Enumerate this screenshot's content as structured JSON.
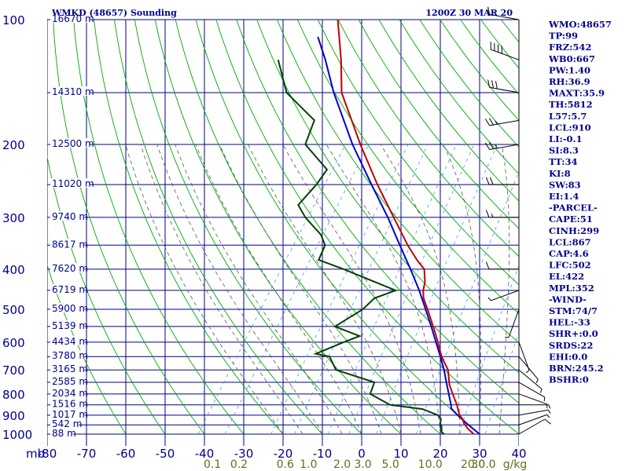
{
  "header": {
    "station": "WMKD (48657) Sounding",
    "time": "1200Z 30 MAR 20"
  },
  "colors": {
    "grid": "#00008b",
    "temperature": "#c00000",
    "dewpoint": "#004000",
    "parcel": "#0000cc",
    "dry_adiabat": "#00aa00",
    "moist_adiabat": "#555555",
    "mixing_ratio": "#4499dd",
    "wind_barb": "#000000"
  },
  "indices": [
    "WMO:48657",
    "TP:99",
    "FRZ:542",
    "WB0:667",
    "PW:1.40",
    "RH:36.9",
    "MAXT:35.9",
    "TH:5812",
    "L57:5.7",
    "LCL:910",
    "LI:-0.1",
    "SI:8.3",
    "TT:34",
    "KI:8",
    "SW:83",
    "EI:1.4",
    "-PARCEL-",
    "CAPE:51",
    "CINH:299",
    "LCL:867",
    "CAP:4.6",
    "LFC:502",
    "EL:422",
    "MPL:352",
    "-WIND-",
    "STM:74/7",
    "HEL:-33",
    "SHR+:0.0",
    "SRDS:22",
    "EHI:0.0",
    "BRN:245.2",
    "BSHR:0"
  ],
  "chart_data": {
    "type": "skew-t",
    "title": "WMKD (48657) Sounding",
    "subtitle": "1200Z 30 MAR 20",
    "pressure_unit_label": "mb",
    "pressure_ticks": [
      100,
      200,
      300,
      400,
      500,
      600,
      700,
      800,
      900,
      1000
    ],
    "temperature_ticks": [
      -80,
      -70,
      -60,
      -50,
      -40,
      -30,
      -20,
      -10,
      0,
      10,
      20,
      30,
      40
    ],
    "mixing_ratio_unit_label": "g/kg",
    "mixing_ratio_ticks": [
      "0.1",
      "0.2",
      "0.6",
      "1.0",
      "2.0",
      "3.0",
      "5.0",
      "10.0",
      "20.0",
      "30.0"
    ],
    "height_labels": [
      {
        "p": 100,
        "label": "16670 m"
      },
      {
        "p": 150,
        "label": "14310 m"
      },
      {
        "p": 200,
        "label": "12500 m"
      },
      {
        "p": 250,
        "label": "11020 m"
      },
      {
        "p": 300,
        "label": "9740 m"
      },
      {
        "p": 350,
        "label": "8617 m"
      },
      {
        "p": 400,
        "label": "7620 m"
      },
      {
        "p": 450,
        "label": "6719 m"
      },
      {
        "p": 500,
        "label": "5900 m"
      },
      {
        "p": 550,
        "label": "5139 m"
      },
      {
        "p": 600,
        "label": "4434 m"
      },
      {
        "p": 650,
        "label": "3780 m"
      },
      {
        "p": 700,
        "label": "3165 m"
      },
      {
        "p": 750,
        "label": "2585 m"
      },
      {
        "p": 800,
        "label": "2034 m"
      },
      {
        "p": 850,
        "label": "1516 m"
      },
      {
        "p": 900,
        "label": "1017 m"
      },
      {
        "p": 950,
        "label": "542 m"
      },
      {
        "p": 1000,
        "label": "88 m"
      }
    ],
    "temperature_profile": [
      {
        "p": 1000,
        "t": 28.5
      },
      {
        "p": 970,
        "t": 26.0
      },
      {
        "p": 940,
        "t": 24.0
      },
      {
        "p": 920,
        "t": 23.0
      },
      {
        "p": 900,
        "t": 21.5
      },
      {
        "p": 870,
        "t": 20.0
      },
      {
        "p": 850,
        "t": 19.0
      },
      {
        "p": 800,
        "t": 16.0
      },
      {
        "p": 760,
        "t": 13.5
      },
      {
        "p": 700,
        "t": 10.5
      },
      {
        "p": 650,
        "t": 6.5
      },
      {
        "p": 600,
        "t": 3.0
      },
      {
        "p": 550,
        "t": -1.0
      },
      {
        "p": 500,
        "t": -5.5
      },
      {
        "p": 470,
        "t": -8.5
      },
      {
        "p": 450,
        "t": -10.0
      },
      {
        "p": 430,
        "t": -11.0
      },
      {
        "p": 400,
        "t": -13.5
      },
      {
        "p": 380,
        "t": -17.0
      },
      {
        "p": 350,
        "t": -22.0
      },
      {
        "p": 300,
        "t": -30.5
      },
      {
        "p": 250,
        "t": -40.5
      },
      {
        "p": 200,
        "t": -52.0
      },
      {
        "p": 175,
        "t": -58.5
      },
      {
        "p": 150,
        "t": -66.0
      },
      {
        "p": 125,
        "t": -72.0
      },
      {
        "p": 100,
        "t": -80.0
      }
    ],
    "dewpoint_profile": [
      {
        "p": 1000,
        "td": 21.0
      },
      {
        "p": 990,
        "td": 20.0
      },
      {
        "p": 960,
        "td": 19.0
      },
      {
        "p": 940,
        "td": 18.0
      },
      {
        "p": 920,
        "td": 17.5
      },
      {
        "p": 900,
        "td": 16.0
      },
      {
        "p": 870,
        "td": 11.0
      },
      {
        "p": 850,
        "td": 2.0
      },
      {
        "p": 800,
        "td": -5.0
      },
      {
        "p": 750,
        "td": -6.0
      },
      {
        "p": 700,
        "td": -18.0
      },
      {
        "p": 650,
        "td": -22.0
      },
      {
        "p": 640,
        "td": -26.0
      },
      {
        "p": 600,
        "td": -21.0
      },
      {
        "p": 580,
        "td": -18.0
      },
      {
        "p": 550,
        "td": -26.0
      },
      {
        "p": 500,
        "td": -22.0
      },
      {
        "p": 470,
        "td": -21.0
      },
      {
        "p": 450,
        "td": -17.0
      },
      {
        "p": 400,
        "td": -34.0
      },
      {
        "p": 380,
        "td": -42.0
      },
      {
        "p": 350,
        "td": -43.0
      },
      {
        "p": 330,
        "td": -46.0
      },
      {
        "p": 300,
        "td": -53.0
      },
      {
        "p": 280,
        "td": -57.0
      },
      {
        "p": 250,
        "td": -56.0
      },
      {
        "p": 230,
        "td": -56.0
      },
      {
        "p": 200,
        "td": -66.0
      },
      {
        "p": 175,
        "td": -68.0
      },
      {
        "p": 150,
        "td": -80.0
      },
      {
        "p": 125,
        "td": -88.0
      }
    ],
    "parcel_profile": [
      {
        "p": 1000,
        "t": 30.0
      },
      {
        "p": 950,
        "t": 25.5
      },
      {
        "p": 900,
        "t": 21.0
      },
      {
        "p": 867,
        "t": 18.2
      },
      {
        "p": 850,
        "t": 17.5
      },
      {
        "p": 800,
        "t": 15.0
      },
      {
        "p": 750,
        "t": 12.3
      },
      {
        "p": 700,
        "t": 9.5
      },
      {
        "p": 650,
        "t": 6.2
      },
      {
        "p": 600,
        "t": 2.5
      },
      {
        "p": 550,
        "t": -1.5
      },
      {
        "p": 500,
        "t": -6.0
      },
      {
        "p": 450,
        "t": -11.0
      },
      {
        "p": 400,
        "t": -17.0
      },
      {
        "p": 350,
        "t": -24.0
      },
      {
        "p": 300,
        "t": -32.0
      },
      {
        "p": 250,
        "t": -42.0
      },
      {
        "p": 200,
        "t": -54.0
      },
      {
        "p": 150,
        "t": -68.0
      },
      {
        "p": 125,
        "t": -76.0
      },
      {
        "p": 110,
        "t": -82.0
      }
    ],
    "wind_barbs": [
      {
        "p": 1000,
        "dir": 60,
        "spd": 10
      },
      {
        "p": 950,
        "dir": 70,
        "spd": 5
      },
      {
        "p": 900,
        "dir": 80,
        "spd": 5
      },
      {
        "p": 850,
        "dir": 90,
        "spd": 5
      },
      {
        "p": 800,
        "dir": 110,
        "spd": 5
      },
      {
        "p": 750,
        "dir": 120,
        "spd": 5
      },
      {
        "p": 700,
        "dir": 130,
        "spd": 5
      },
      {
        "p": 650,
        "dir": 140,
        "spd": 5
      },
      {
        "p": 600,
        "dir": 160,
        "spd": 5
      },
      {
        "p": 500,
        "dir": 200,
        "spd": 5
      },
      {
        "p": 450,
        "dir": 250,
        "spd": 5
      },
      {
        "p": 400,
        "dir": 270,
        "spd": 10
      },
      {
        "p": 300,
        "dir": 270,
        "spd": 15
      },
      {
        "p": 250,
        "dir": 270,
        "spd": 20
      },
      {
        "p": 200,
        "dir": 260,
        "spd": 25
      },
      {
        "p": 175,
        "dir": 260,
        "spd": 25
      },
      {
        "p": 150,
        "dir": 280,
        "spd": 30
      },
      {
        "p": 125,
        "dir": 290,
        "spd": 40
      },
      {
        "p": 100,
        "dir": 280,
        "spd": 10
      }
    ],
    "grid": true
  }
}
